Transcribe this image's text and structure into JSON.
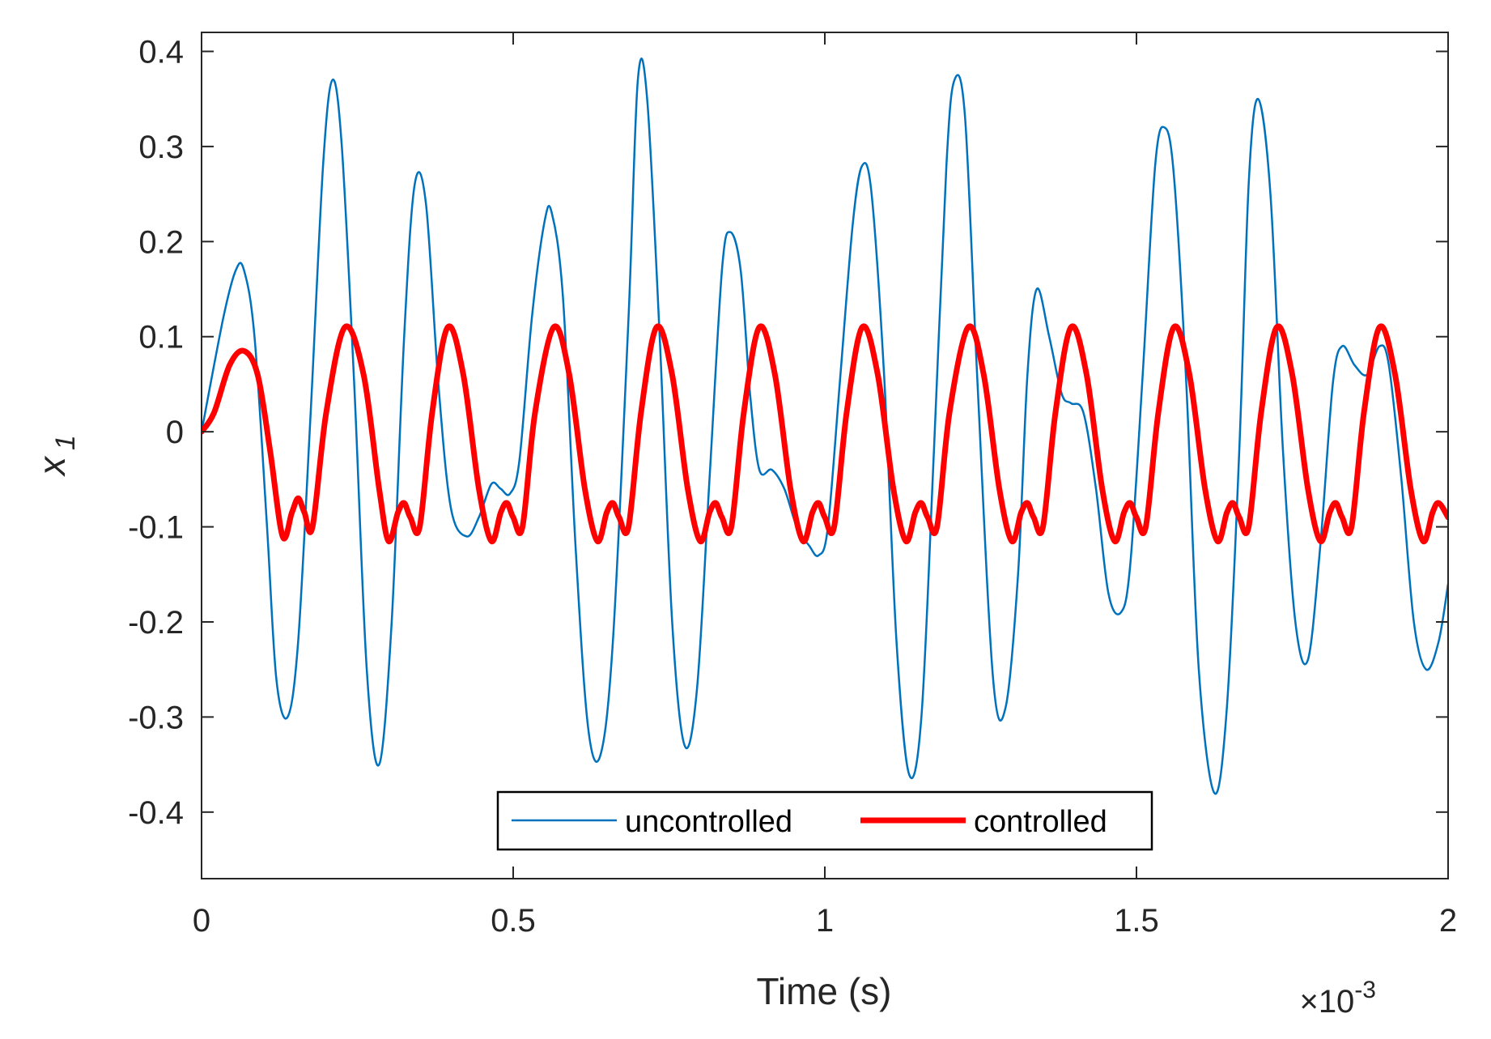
{
  "chart_data": {
    "type": "line",
    "xlabel": "Time (s)",
    "ylabel": "x",
    "ylabel_subscript": "1",
    "x_exponent_label": {
      "base": "×10",
      "exponent": "-3"
    },
    "xlim": [
      0,
      2
    ],
    "ylim": [
      -0.47,
      0.42
    ],
    "xticks": [
      0,
      0.5,
      1,
      1.5,
      2
    ],
    "xtick_labels": [
      "0",
      "0.5",
      "1",
      "1.5",
      "2"
    ],
    "yticks": [
      0.4,
      0.3,
      0.2,
      0.1,
      0,
      -0.1,
      -0.2,
      -0.3,
      -0.4
    ],
    "ytick_labels": [
      "0.4",
      "0.3",
      "0.2",
      "0.1",
      "0",
      "-0.1",
      "-0.2",
      "-0.3",
      "-0.4"
    ],
    "grid": false,
    "legend": {
      "placement": "bottom-center",
      "orientation": "horizontal"
    },
    "colors": {
      "uncontrolled": "#0072BD",
      "controlled": "#FF0000",
      "axis": "#262626"
    },
    "series": [
      {
        "name": "uncontrolled",
        "color": "#0072BD",
        "line_width": "thin",
        "x": [
          0,
          0.035,
          0.055,
          0.068,
          0.085,
          0.105,
          0.12,
          0.138,
          0.155,
          0.175,
          0.195,
          0.21,
          0.225,
          0.245,
          0.265,
          0.285,
          0.305,
          0.325,
          0.342,
          0.36,
          0.38,
          0.4,
          0.425,
          0.445,
          0.465,
          0.48,
          0.495,
          0.51,
          0.53,
          0.55,
          0.562,
          0.58,
          0.6,
          0.62,
          0.64,
          0.66,
          0.685,
          0.7,
          0.715,
          0.735,
          0.755,
          0.775,
          0.795,
          0.815,
          0.835,
          0.848,
          0.865,
          0.88,
          0.895,
          0.915,
          0.935,
          0.955,
          0.975,
          0.99,
          1.005,
          1.025,
          1.045,
          1.06,
          1.075,
          1.095,
          1.115,
          1.135,
          1.155,
          1.175,
          1.195,
          1.208,
          1.225,
          1.245,
          1.27,
          1.29,
          1.31,
          1.325,
          1.34,
          1.36,
          1.38,
          1.395,
          1.415,
          1.435,
          1.455,
          1.475,
          1.49,
          1.51,
          1.53,
          1.545,
          1.56,
          1.58,
          1.6,
          1.625,
          1.645,
          1.665,
          1.68,
          1.695,
          1.715,
          1.735,
          1.755,
          1.775,
          1.795,
          1.815,
          1.83,
          1.85,
          1.87,
          1.89,
          1.905,
          1.925,
          1.945,
          1.965,
          1.985,
          2.0
        ],
        "values": [
          0.0,
          0.12,
          0.17,
          0.17,
          0.1,
          -0.1,
          -0.26,
          -0.3,
          -0.22,
          0.02,
          0.28,
          0.37,
          0.3,
          0.05,
          -0.25,
          -0.35,
          -0.2,
          0.1,
          0.26,
          0.24,
          0.05,
          -0.08,
          -0.11,
          -0.09,
          -0.055,
          -0.06,
          -0.065,
          -0.03,
          0.12,
          0.22,
          0.23,
          0.14,
          -0.12,
          -0.31,
          -0.34,
          -0.22,
          0.12,
          0.37,
          0.35,
          0.1,
          -0.2,
          -0.33,
          -0.27,
          -0.05,
          0.17,
          0.21,
          0.17,
          0.04,
          -0.04,
          -0.04,
          -0.06,
          -0.1,
          -0.12,
          -0.13,
          -0.1,
          0.06,
          0.22,
          0.28,
          0.25,
          0.06,
          -0.22,
          -0.36,
          -0.3,
          -0.02,
          0.28,
          0.37,
          0.33,
          0.05,
          -0.26,
          -0.29,
          -0.15,
          0.06,
          0.15,
          0.1,
          0.04,
          0.03,
          0.02,
          -0.06,
          -0.17,
          -0.19,
          -0.14,
          0.06,
          0.28,
          0.32,
          0.27,
          0.05,
          -0.25,
          -0.38,
          -0.29,
          -0.02,
          0.26,
          0.35,
          0.25,
          -0.02,
          -0.2,
          -0.24,
          -0.12,
          0.05,
          0.09,
          0.07,
          0.06,
          0.09,
          0.07,
          -0.05,
          -0.2,
          -0.25,
          -0.22,
          -0.16
        ]
      },
      {
        "name": "controlled",
        "color": "#FF0000",
        "line_width": "thick",
        "x": [
          0,
          0.02,
          0.045,
          0.068,
          0.09,
          0.11,
          0.13,
          0.145,
          0.155,
          0.165,
          0.178,
          0.2,
          0.23,
          0.26,
          0.285,
          0.3,
          0.315,
          0.325,
          0.335,
          0.35,
          0.37,
          0.395,
          0.42,
          0.445,
          0.465,
          0.48,
          0.49,
          0.5,
          0.515,
          0.535,
          0.565,
          0.59,
          0.615,
          0.635,
          0.65,
          0.66,
          0.67,
          0.685,
          0.705,
          0.73,
          0.755,
          0.78,
          0.8,
          0.815,
          0.825,
          0.835,
          0.85,
          0.87,
          0.895,
          0.92,
          0.945,
          0.965,
          0.98,
          0.99,
          1.0,
          1.015,
          1.035,
          1.06,
          1.085,
          1.11,
          1.13,
          1.145,
          1.155,
          1.165,
          1.18,
          1.2,
          1.23,
          1.255,
          1.28,
          1.3,
          1.315,
          1.325,
          1.335,
          1.35,
          1.37,
          1.395,
          1.42,
          1.445,
          1.465,
          1.48,
          1.49,
          1.5,
          1.515,
          1.535,
          1.56,
          1.585,
          1.61,
          1.63,
          1.645,
          1.655,
          1.665,
          1.68,
          1.7,
          1.725,
          1.75,
          1.775,
          1.795,
          1.81,
          1.82,
          1.83,
          1.845,
          1.865,
          1.89,
          1.915,
          1.94,
          1.96,
          1.975,
          1.985,
          2.0
        ],
        "values": [
          0.0,
          0.02,
          0.07,
          0.085,
          0.06,
          -0.02,
          -0.11,
          -0.085,
          -0.07,
          -0.085,
          -0.1,
          0.02,
          0.11,
          0.06,
          -0.06,
          -0.115,
          -0.085,
          -0.075,
          -0.09,
          -0.1,
          0.02,
          0.11,
          0.06,
          -0.06,
          -0.115,
          -0.085,
          -0.075,
          -0.09,
          -0.1,
          0.02,
          0.11,
          0.06,
          -0.06,
          -0.115,
          -0.085,
          -0.075,
          -0.09,
          -0.1,
          0.02,
          0.11,
          0.06,
          -0.06,
          -0.115,
          -0.085,
          -0.075,
          -0.09,
          -0.1,
          0.02,
          0.11,
          0.06,
          -0.06,
          -0.115,
          -0.085,
          -0.075,
          -0.09,
          -0.1,
          0.02,
          0.11,
          0.06,
          -0.06,
          -0.115,
          -0.085,
          -0.075,
          -0.09,
          -0.1,
          0.02,
          0.11,
          0.06,
          -0.06,
          -0.115,
          -0.085,
          -0.075,
          -0.09,
          -0.1,
          0.02,
          0.11,
          0.06,
          -0.06,
          -0.115,
          -0.085,
          -0.075,
          -0.09,
          -0.1,
          0.02,
          0.11,
          0.06,
          -0.06,
          -0.115,
          -0.085,
          -0.075,
          -0.09,
          -0.1,
          0.02,
          0.11,
          0.06,
          -0.06,
          -0.115,
          -0.085,
          -0.075,
          -0.09,
          -0.1,
          0.02,
          0.11,
          0.06,
          -0.06,
          -0.115,
          -0.085,
          -0.075,
          -0.09
        ]
      }
    ]
  }
}
